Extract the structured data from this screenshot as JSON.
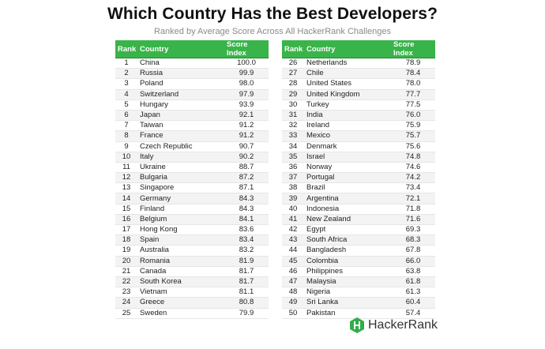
{
  "chart_data": {
    "type": "table",
    "title": "Which Country Has the Best Developers?",
    "subtitle": "Ranked by Average Score Across All HackerRank Challenges",
    "columns": [
      "Rank",
      "Country",
      "Score Index"
    ],
    "rows": [
      {
        "rank": "1",
        "country": "China",
        "score": "100.0"
      },
      {
        "rank": "2",
        "country": "Russia",
        "score": "99.9"
      },
      {
        "rank": "3",
        "country": "Poland",
        "score": "98.0"
      },
      {
        "rank": "4",
        "country": "Switzerland",
        "score": "97.9"
      },
      {
        "rank": "5",
        "country": "Hungary",
        "score": "93.9"
      },
      {
        "rank": "6",
        "country": "Japan",
        "score": "92.1"
      },
      {
        "rank": "7",
        "country": "Taiwan",
        "score": "91.2"
      },
      {
        "rank": "8",
        "country": "France",
        "score": "91.2"
      },
      {
        "rank": "9",
        "country": "Czech Republic",
        "score": "90.7"
      },
      {
        "rank": "10",
        "country": "Italy",
        "score": "90.2"
      },
      {
        "rank": "11",
        "country": "Ukraine",
        "score": "88.7"
      },
      {
        "rank": "12",
        "country": "Bulgaria",
        "score": "87.2"
      },
      {
        "rank": "13",
        "country": "Singapore",
        "score": "87.1"
      },
      {
        "rank": "14",
        "country": "Germany",
        "score": "84.3"
      },
      {
        "rank": "15",
        "country": "Finland",
        "score": "84.3"
      },
      {
        "rank": "16",
        "country": "Belgium",
        "score": "84.1"
      },
      {
        "rank": "17",
        "country": "Hong Kong",
        "score": "83.6"
      },
      {
        "rank": "18",
        "country": "Spain",
        "score": "83.4"
      },
      {
        "rank": "19",
        "country": "Australia",
        "score": "83.2"
      },
      {
        "rank": "20",
        "country": "Romania",
        "score": "81.9"
      },
      {
        "rank": "21",
        "country": "Canada",
        "score": "81.7"
      },
      {
        "rank": "22",
        "country": "South Korea",
        "score": "81.7"
      },
      {
        "rank": "23",
        "country": "Vietnam",
        "score": "81.1"
      },
      {
        "rank": "24",
        "country": "Greece",
        "score": "80.8"
      },
      {
        "rank": "25",
        "country": "Sweden",
        "score": "79.9"
      },
      {
        "rank": "26",
        "country": "Netherlands",
        "score": "78.9"
      },
      {
        "rank": "27",
        "country": "Chile",
        "score": "78.4"
      },
      {
        "rank": "28",
        "country": "United States",
        "score": "78.0"
      },
      {
        "rank": "29",
        "country": "United Kingdom",
        "score": "77.7"
      },
      {
        "rank": "30",
        "country": "Turkey",
        "score": "77.5"
      },
      {
        "rank": "31",
        "country": "India",
        "score": "76.0"
      },
      {
        "rank": "32",
        "country": "Ireland",
        "score": "75.9"
      },
      {
        "rank": "33",
        "country": "Mexico",
        "score": "75.7"
      },
      {
        "rank": "34",
        "country": "Denmark",
        "score": "75.6"
      },
      {
        "rank": "35",
        "country": "Israel",
        "score": "74.8"
      },
      {
        "rank": "36",
        "country": "Norway",
        "score": "74.6"
      },
      {
        "rank": "37",
        "country": "Portugal",
        "score": "74.2"
      },
      {
        "rank": "38",
        "country": "Brazil",
        "score": "73.4"
      },
      {
        "rank": "39",
        "country": "Argentina",
        "score": "72.1"
      },
      {
        "rank": "40",
        "country": "Indonesia",
        "score": "71.8"
      },
      {
        "rank": "41",
        "country": "New Zealand",
        "score": "71.6"
      },
      {
        "rank": "42",
        "country": "Egypt",
        "score": "69.3"
      },
      {
        "rank": "43",
        "country": "South Africa",
        "score": "68.3"
      },
      {
        "rank": "44",
        "country": "Bangladesh",
        "score": "67.8"
      },
      {
        "rank": "45",
        "country": "Colombia",
        "score": "66.0"
      },
      {
        "rank": "46",
        "country": "Philippines",
        "score": "63.8"
      },
      {
        "rank": "47",
        "country": "Malaysia",
        "score": "61.8"
      },
      {
        "rank": "48",
        "country": "Nigeria",
        "score": "61.3"
      },
      {
        "rank": "49",
        "country": "Sri Lanka",
        "score": "60.4"
      },
      {
        "rank": "50",
        "country": "Pakistan",
        "score": "57.4"
      }
    ]
  },
  "branding": {
    "logo_text": "HackerRank",
    "logo_icon": "hackerrank-hexagon-icon"
  },
  "colors": {
    "header_green": "#39b44a",
    "logo_green": "#2fae4a"
  }
}
